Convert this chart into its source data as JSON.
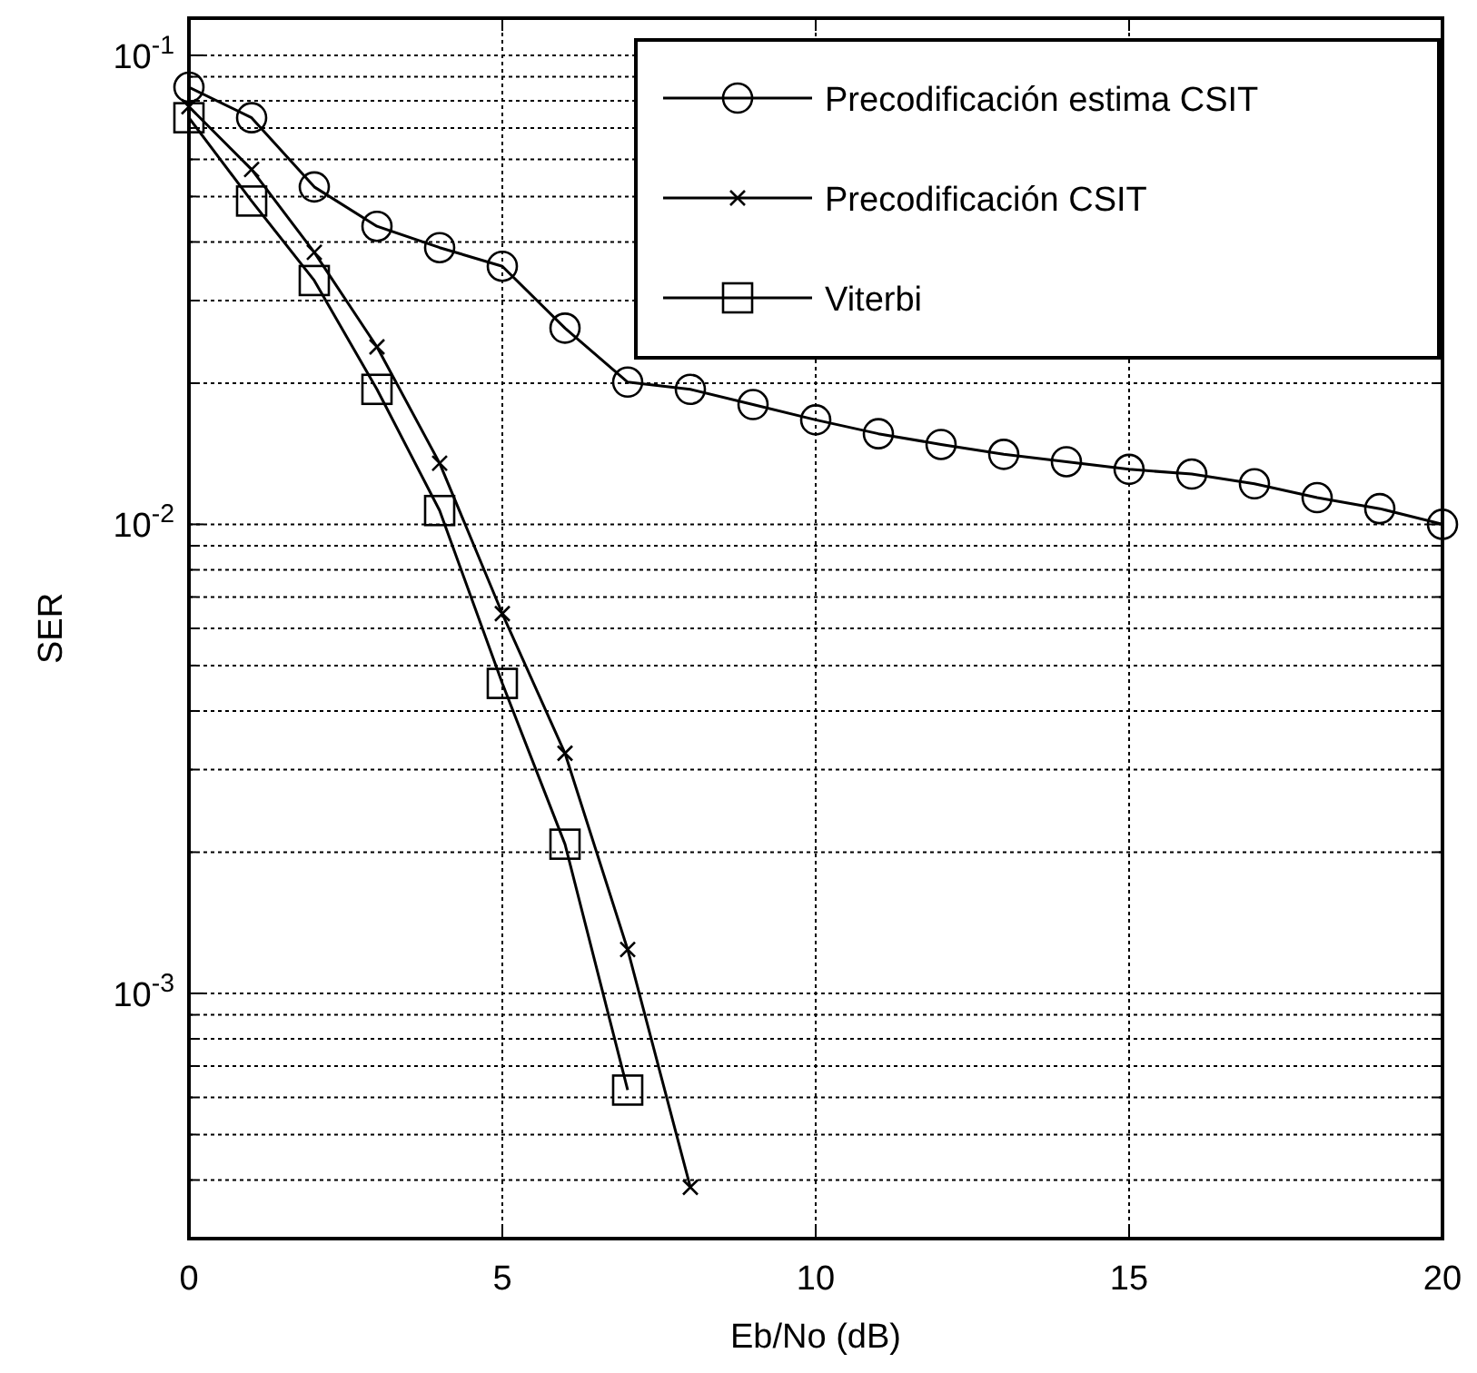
{
  "chart_data": {
    "type": "line",
    "xlabel": "Eb/No (dB)",
    "ylabel": "SER",
    "log": "y",
    "grid": true,
    "legend": "top right",
    "line_style": "solid",
    "xlim": [
      0,
      20
    ],
    "xticks": [
      0,
      5,
      10,
      15,
      20
    ],
    "ylim": [
      0.0003,
      0.12
    ],
    "yticks": [
      {
        "value": 0.0003,
        "label": null
      },
      {
        "value": 0.0004,
        "label": null
      },
      {
        "value": 0.0005,
        "label": null
      },
      {
        "value": 0.0006,
        "label": null
      },
      {
        "value": 0.0007,
        "label": null
      },
      {
        "value": 0.0008,
        "label": null
      },
      {
        "value": 0.0009,
        "label": null
      },
      {
        "value": 0.001,
        "label": "10$^{-3}$"
      },
      {
        "value": 0.002,
        "label": null
      },
      {
        "value": 0.003,
        "label": null
      },
      {
        "value": 0.004,
        "label": null
      },
      {
        "value": 0.005,
        "label": null
      },
      {
        "value": 0.006,
        "label": null
      },
      {
        "value": 0.007,
        "label": null
      },
      {
        "value": 0.008,
        "label": null
      },
      {
        "value": 0.009,
        "label": null
      },
      {
        "value": 0.01,
        "label": "10$^{-2}$"
      },
      {
        "value": 0.02,
        "label": null
      },
      {
        "value": 0.03,
        "label": null
      },
      {
        "value": 0.04,
        "label": null
      },
      {
        "value": 0.05,
        "label": null
      },
      {
        "value": 0.06,
        "label": null
      },
      {
        "value": 0.07,
        "label": null
      },
      {
        "value": 0.08,
        "label": null
      },
      {
        "value": 0.09,
        "label": null
      },
      {
        "value": 0.1,
        "label": "10$^{-1}$"
      }
    ],
    "series": [
      {
        "name": "Precodificación estima CSIT",
        "color": "#000000",
        "marker": "circle",
        "x": [
          0,
          1,
          2,
          3,
          4,
          5,
          6,
          7,
          8,
          9,
          10,
          11,
          12,
          13,
          14,
          15,
          16,
          17,
          18,
          19,
          20
        ],
        "values": [
          0.0855,
          0.0736,
          0.0524,
          0.0432,
          0.0389,
          0.0355,
          0.0262,
          0.0201,
          0.0194,
          0.018,
          0.0167,
          0.0156,
          0.0148,
          0.0141,
          0.0136,
          0.0131,
          0.0128,
          0.0122,
          0.0114,
          0.0108,
          0.01
        ]
      },
      {
        "name": "Precodificación CSIT",
        "color": "#000000",
        "marker": "cross",
        "x": [
          0,
          1,
          2,
          3,
          4,
          5,
          6,
          7,
          8
        ],
        "values": [
          0.0777,
          0.0571,
          0.038,
          0.0239,
          0.0135,
          0.00645,
          0.00325,
          0.00124,
          0.000386
        ]
      },
      {
        "name": "Viterbi",
        "color": "#000000",
        "marker": "square",
        "x": [
          0,
          1,
          2,
          3,
          4,
          5,
          6,
          7
        ],
        "values": [
          0.0736,
          0.0489,
          0.0331,
          0.0194,
          0.0107,
          0.00458,
          0.00208,
          0.000622
        ]
      }
    ]
  }
}
